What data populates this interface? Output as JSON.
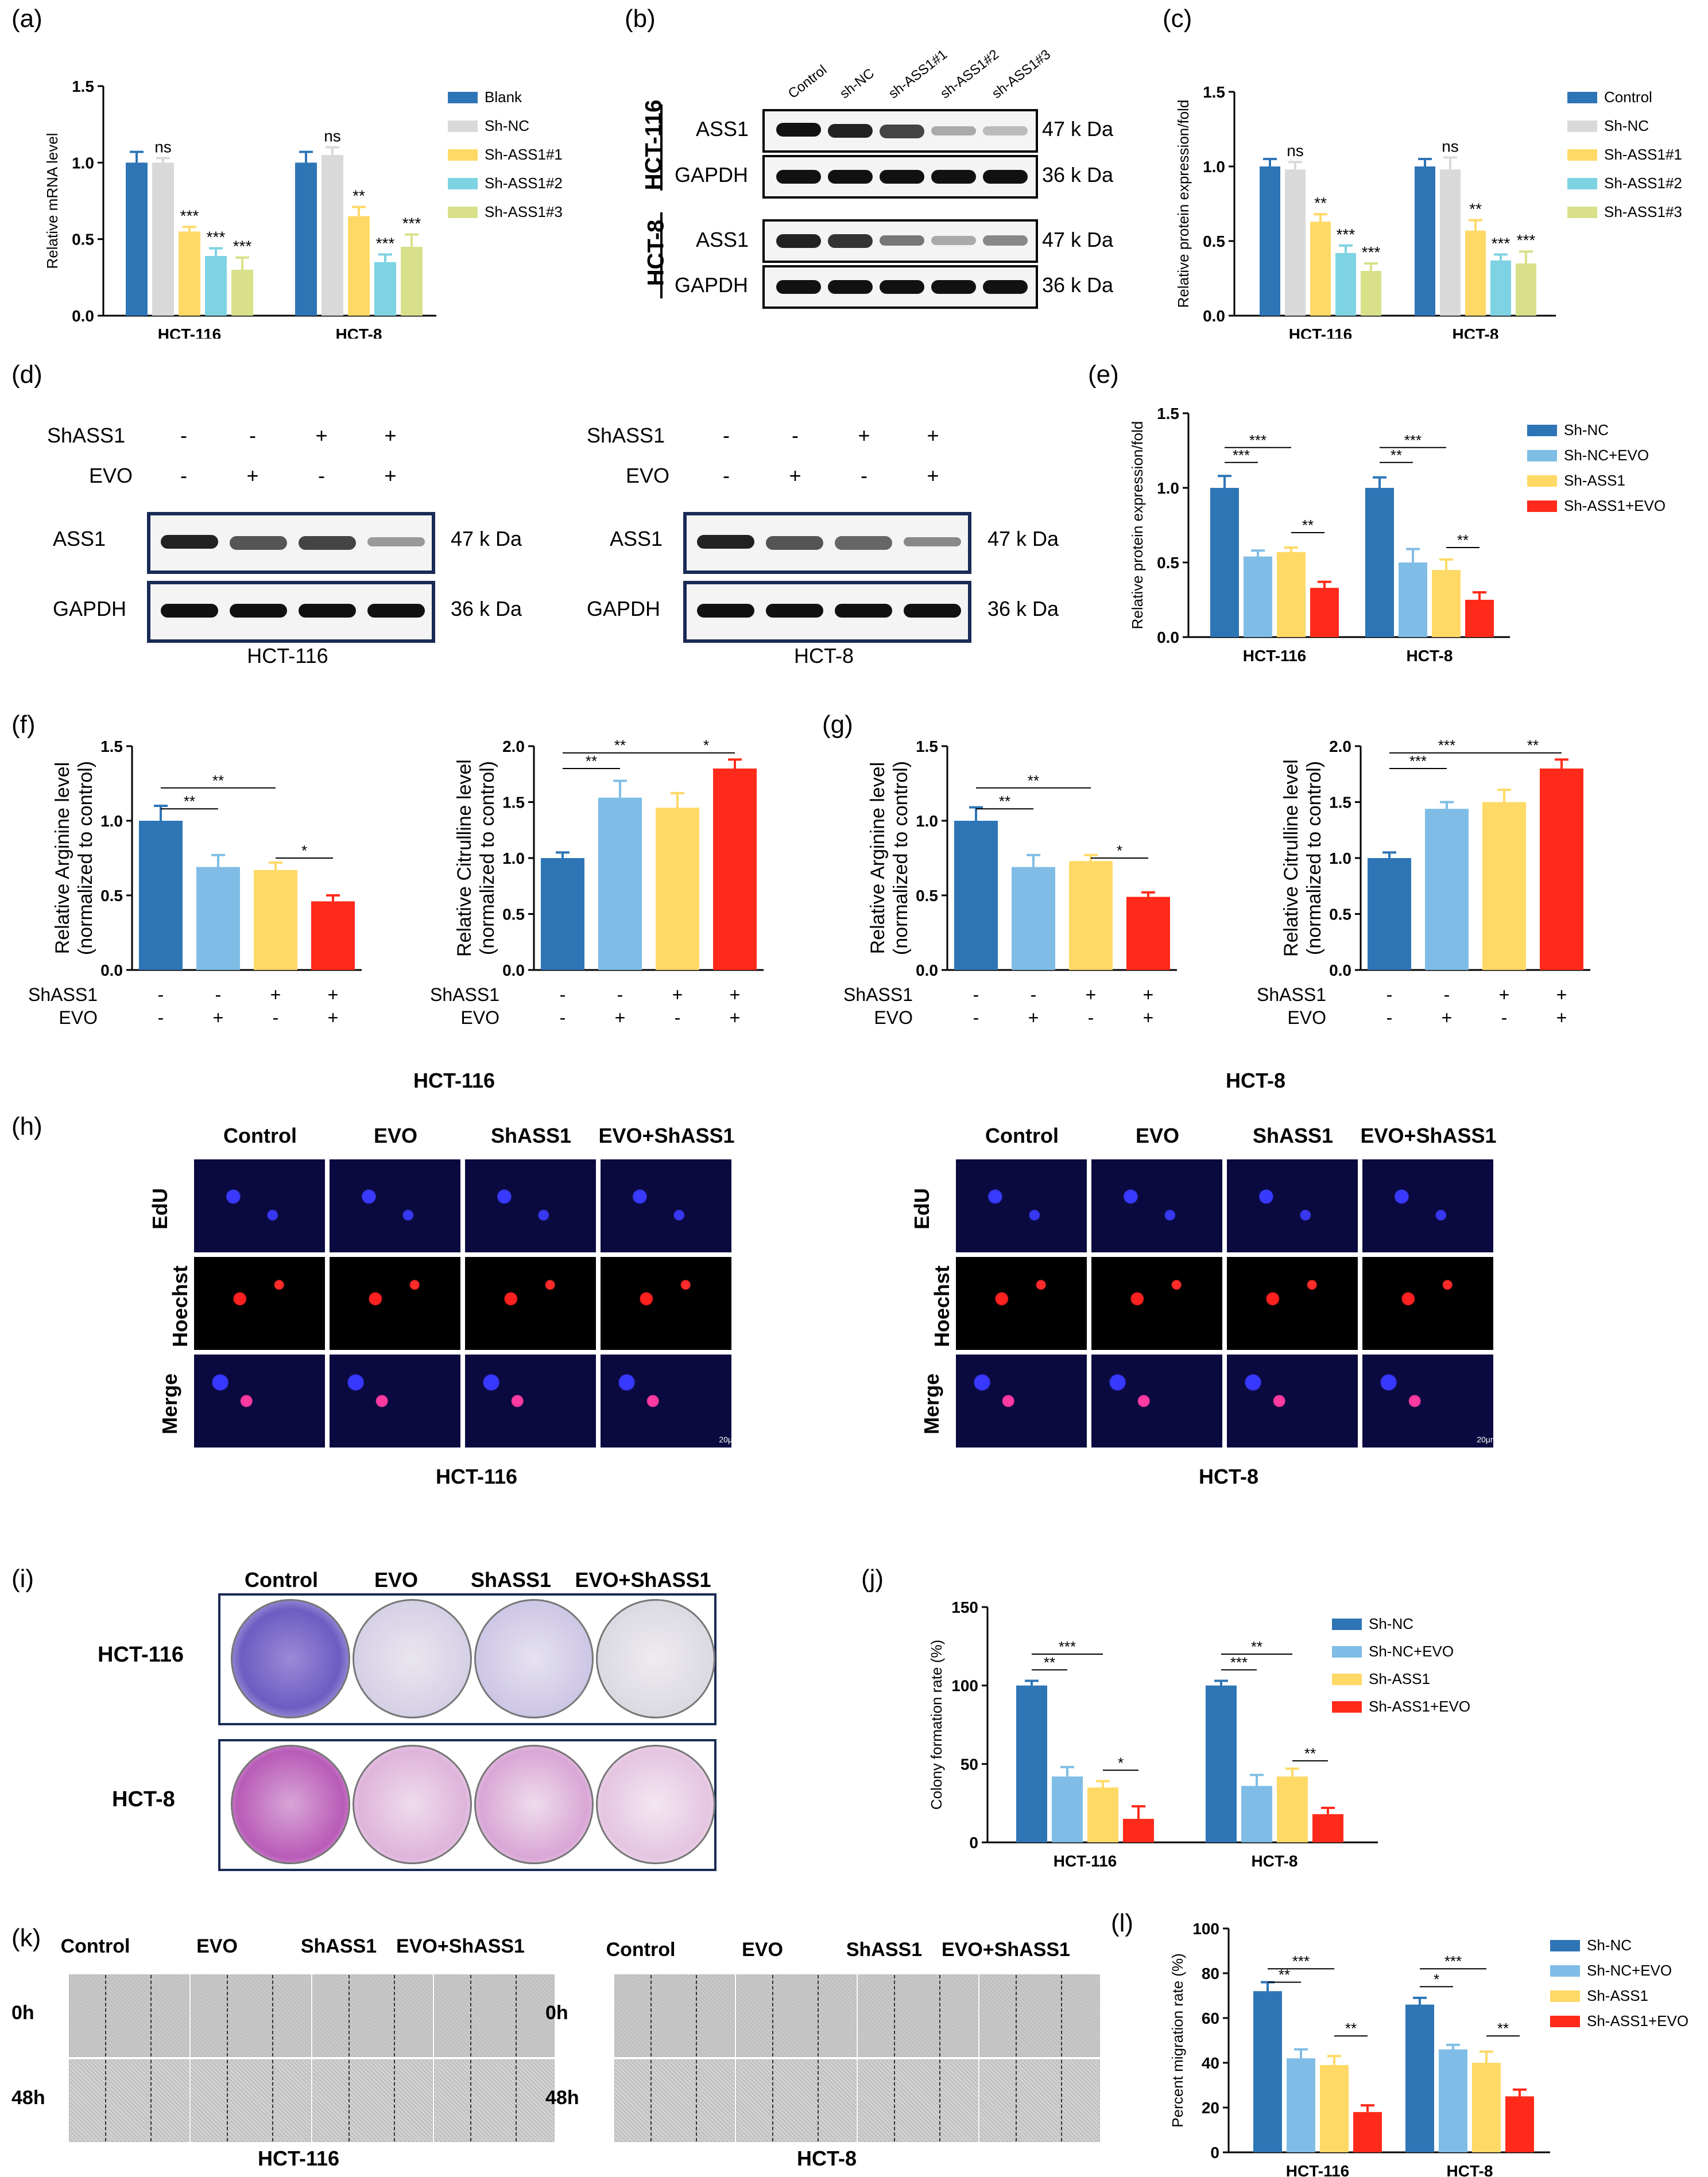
{
  "panels": {
    "a": "(a)",
    "b": "(b)",
    "c": "(c)",
    "d": "(d)",
    "e": "(e)",
    "f": "(f)",
    "g": "(g)",
    "h": "(h)",
    "i": "(i)",
    "j": "(j)",
    "k": "(k)",
    "l": "(l)"
  },
  "colors": {
    "blue": "#2e75b6",
    "lightgray": "#d9d9d9",
    "yellow": "#ffd966",
    "cyan": "#7ed3e3",
    "olive": "#d8e08a",
    "lightblue": "#7fbde6",
    "red": "#ff2a1a"
  },
  "blot_b": {
    "lanes": [
      "Control",
      "sh-NC",
      "sh-ASS1#1",
      "sh-ASS1#2",
      "sh-ASS1#3"
    ],
    "cells": [
      "HCT-116",
      "HCT-8"
    ],
    "proteins": [
      "ASS1",
      "GAPDH"
    ],
    "sizes": [
      "47 k Da",
      "36 k Da"
    ]
  },
  "blot_d": {
    "row1_label": "ShASS1",
    "row2_label": "EVO",
    "row1": [
      "-",
      "-",
      "+",
      "+"
    ],
    "row2": [
      "-",
      "+",
      "-",
      "+"
    ],
    "proteins": [
      "ASS1",
      "GAPDH"
    ],
    "sizes": [
      "47 k Da",
      "36 k Da"
    ],
    "cells": [
      "HCT-116",
      "HCT-8"
    ]
  },
  "conditions": {
    "row1_label": "ShASS1",
    "row2_label": "EVO",
    "row1": [
      "-",
      "-",
      "+",
      "+"
    ],
    "row2": [
      "-",
      "+",
      "-",
      "+"
    ]
  },
  "fg_titles": {
    "left": "HCT-116",
    "right": "HCT-8"
  },
  "edu": {
    "cols": [
      "Control",
      "EVO",
      "ShASS1",
      "EVO+ShASS1"
    ],
    "rows": [
      "EdU",
      "Hoechst",
      "Merge"
    ],
    "scale": "20μm",
    "cells": [
      "HCT-116",
      "HCT-8"
    ]
  },
  "colony": {
    "cols": [
      "Control",
      "EVO",
      "ShASS1",
      "EVO+ShASS1"
    ],
    "rows": [
      "HCT-116",
      "HCT-8"
    ]
  },
  "wound": {
    "cols": [
      "Control",
      "EVO",
      "ShASS1",
      "EVO+ShASS1"
    ],
    "rows": [
      "0h",
      "48h"
    ],
    "cells": [
      "HCT-116",
      "HCT-8"
    ]
  },
  "chart_data": [
    {
      "id": "a",
      "type": "bar",
      "ylabel": "Relative mRNA level",
      "ylim": [
        0,
        1.5
      ],
      "yticks": [
        "0.0",
        "0.5",
        "1.0",
        "1.5"
      ],
      "categories": [
        "HCT-116",
        "HCT-8"
      ],
      "series": [
        {
          "name": "Blank",
          "color": "#2e75b6",
          "values": [
            1.0,
            1.0
          ],
          "err": [
            0.07,
            0.07
          ],
          "sig": [
            "",
            ""
          ]
        },
        {
          "name": "Sh-NC",
          "color": "#d9d9d9",
          "values": [
            1.0,
            1.05
          ],
          "err": [
            0.03,
            0.05
          ],
          "sig": [
            "ns",
            "ns"
          ]
        },
        {
          "name": "Sh-ASS1#1",
          "color": "#ffd966",
          "values": [
            0.55,
            0.65
          ],
          "err": [
            0.03,
            0.06
          ],
          "sig": [
            "***",
            "**"
          ]
        },
        {
          "name": "Sh-ASS1#2",
          "color": "#7ed3e3",
          "values": [
            0.39,
            0.35
          ],
          "err": [
            0.05,
            0.05
          ],
          "sig": [
            "***",
            "***"
          ]
        },
        {
          "name": "Sh-ASS1#3",
          "color": "#d8e08a",
          "values": [
            0.3,
            0.45
          ],
          "err": [
            0.08,
            0.08
          ],
          "sig": [
            "***",
            "***"
          ]
        }
      ]
    },
    {
      "id": "c",
      "type": "bar",
      "ylabel": "Relative protein expression/fold",
      "ylim": [
        0,
        1.5
      ],
      "yticks": [
        "0.0",
        "0.5",
        "1.0",
        "1.5"
      ],
      "categories": [
        "HCT-116",
        "HCT-8"
      ],
      "series": [
        {
          "name": "Control",
          "color": "#2e75b6",
          "values": [
            1.0,
            1.0
          ],
          "err": [
            0.05,
            0.05
          ],
          "sig": [
            "",
            ""
          ]
        },
        {
          "name": "Sh-NC",
          "color": "#d9d9d9",
          "values": [
            0.98,
            0.98
          ],
          "err": [
            0.05,
            0.08
          ],
          "sig": [
            "ns",
            "ns"
          ]
        },
        {
          "name": "Sh-ASS1#1",
          "color": "#ffd966",
          "values": [
            0.63,
            0.57
          ],
          "err": [
            0.05,
            0.07
          ],
          "sig": [
            "**",
            "**"
          ]
        },
        {
          "name": "Sh-ASS1#2",
          "color": "#7ed3e3",
          "values": [
            0.42,
            0.37
          ],
          "err": [
            0.05,
            0.04
          ],
          "sig": [
            "***",
            "***"
          ]
        },
        {
          "name": "Sh-ASS1#3",
          "color": "#d8e08a",
          "values": [
            0.3,
            0.35
          ],
          "err": [
            0.05,
            0.08
          ],
          "sig": [
            "***",
            "***"
          ]
        }
      ]
    },
    {
      "id": "e",
      "type": "bar",
      "ylabel": "Relative protein expression/fold",
      "ylim": [
        0,
        1.5
      ],
      "yticks": [
        "0.0",
        "0.5",
        "1.0",
        "1.5"
      ],
      "categories": [
        "HCT-116",
        "HCT-8"
      ],
      "series": [
        {
          "name": "Sh-NC",
          "color": "#2e75b6",
          "values": [
            1.0,
            1.0
          ],
          "err": [
            0.08,
            0.07
          ]
        },
        {
          "name": "Sh-NC+EVO",
          "color": "#7fbde6",
          "values": [
            0.54,
            0.5
          ],
          "err": [
            0.04,
            0.09
          ]
        },
        {
          "name": "Sh-ASS1",
          "color": "#ffd966",
          "values": [
            0.57,
            0.45
          ],
          "err": [
            0.03,
            0.07
          ]
        },
        {
          "name": "Sh-ASS1+EVO",
          "color": "#ff2a1a",
          "values": [
            0.33,
            0.25
          ],
          "err": [
            0.04,
            0.05
          ]
        }
      ],
      "brackets": [
        {
          "cat": 0,
          "from": 0,
          "to": 2,
          "at": 1.27,
          "label": "***"
        },
        {
          "cat": 0,
          "from": 0,
          "to": 1,
          "at": 1.17,
          "label": "***"
        },
        {
          "cat": 0,
          "from": 2,
          "to": 3,
          "at": 0.7,
          "label": "**"
        },
        {
          "cat": 1,
          "from": 0,
          "to": 2,
          "at": 1.27,
          "label": "***"
        },
        {
          "cat": 1,
          "from": 0,
          "to": 1,
          "at": 1.17,
          "label": "**"
        },
        {
          "cat": 1,
          "from": 2,
          "to": 3,
          "at": 0.6,
          "label": "**"
        }
      ]
    },
    {
      "id": "f1",
      "type": "bar",
      "ylabel": "Relative Arginine level",
      "ylabel2": "(normalized to control)",
      "ylim": [
        0,
        1.5
      ],
      "yticks": [
        "0.0",
        "0.5",
        "1.0",
        "1.5"
      ],
      "values": [
        1.0,
        0.69,
        0.67,
        0.46
      ],
      "err": [
        0.1,
        0.08,
        0.05,
        0.04
      ],
      "colors": [
        "#2e75b6",
        "#7fbde6",
        "#ffd966",
        "#ff2a1a"
      ],
      "brackets": [
        {
          "from": 0,
          "to": 2,
          "at": 1.22,
          "label": "**"
        },
        {
          "from": 0,
          "to": 1,
          "at": 1.08,
          "label": "**"
        },
        {
          "from": 2,
          "to": 3,
          "at": 0.75,
          "label": "*"
        }
      ]
    },
    {
      "id": "f2",
      "type": "bar",
      "ylabel": "Relative Citrulline level",
      "ylabel2": "(normalized to control)",
      "ylim": [
        0,
        2.0
      ],
      "yticks": [
        "0.0",
        "0.5",
        "1.0",
        "1.5",
        "2.0"
      ],
      "values": [
        1.0,
        1.54,
        1.45,
        1.8
      ],
      "err": [
        0.05,
        0.15,
        0.13,
        0.08
      ],
      "colors": [
        "#2e75b6",
        "#7fbde6",
        "#ffd966",
        "#ff2a1a"
      ],
      "brackets": [
        {
          "from": 0,
          "to": 2,
          "at": 1.94,
          "label": "**"
        },
        {
          "from": 0,
          "to": 1,
          "at": 1.8,
          "label": "**"
        },
        {
          "from": 2,
          "to": 3,
          "at": 1.94,
          "label": "*"
        }
      ]
    },
    {
      "id": "g1",
      "type": "bar",
      "ylabel": "Relative Arginine level",
      "ylabel2": "(normalized to control)",
      "ylim": [
        0,
        1.5
      ],
      "yticks": [
        "0.0",
        "0.5",
        "1.0",
        "1.5"
      ],
      "values": [
        1.0,
        0.69,
        0.73,
        0.49
      ],
      "err": [
        0.09,
        0.08,
        0.04,
        0.03
      ],
      "colors": [
        "#2e75b6",
        "#7fbde6",
        "#ffd966",
        "#ff2a1a"
      ],
      "brackets": [
        {
          "from": 0,
          "to": 2,
          "at": 1.22,
          "label": "**"
        },
        {
          "from": 0,
          "to": 1,
          "at": 1.08,
          "label": "**"
        },
        {
          "from": 2,
          "to": 3,
          "at": 0.75,
          "label": "*"
        }
      ]
    },
    {
      "id": "g2",
      "type": "bar",
      "ylabel": "Relative Citrulline level",
      "ylabel2": "(normalized to control)",
      "ylim": [
        0,
        2.0
      ],
      "yticks": [
        "0.0",
        "0.5",
        "1.0",
        "1.5",
        "2.0"
      ],
      "values": [
        1.0,
        1.44,
        1.5,
        1.8
      ],
      "err": [
        0.05,
        0.06,
        0.11,
        0.08
      ],
      "colors": [
        "#2e75b6",
        "#7fbde6",
        "#ffd966",
        "#ff2a1a"
      ],
      "brackets": [
        {
          "from": 0,
          "to": 2,
          "at": 1.94,
          "label": "***"
        },
        {
          "from": 0,
          "to": 1,
          "at": 1.8,
          "label": "***"
        },
        {
          "from": 2,
          "to": 3,
          "at": 1.94,
          "label": "**"
        }
      ]
    },
    {
      "id": "j",
      "type": "bar",
      "ylabel": "Colony formation rate  (%)",
      "ylim": [
        0,
        150
      ],
      "yticks": [
        "0",
        "50",
        "100",
        "150"
      ],
      "categories": [
        "HCT-116",
        "HCT-8"
      ],
      "series": [
        {
          "name": "Sh-NC",
          "color": "#2e75b6",
          "values": [
            100,
            100
          ],
          "err": [
            3,
            3
          ]
        },
        {
          "name": "Sh-NC+EVO",
          "color": "#7fbde6",
          "values": [
            42,
            36
          ],
          "err": [
            6,
            7
          ]
        },
        {
          "name": "Sh-ASS1",
          "color": "#ffd966",
          "values": [
            35,
            42
          ],
          "err": [
            4,
            5
          ]
        },
        {
          "name": "Sh-ASS1+EVO",
          "color": "#ff2a1a",
          "values": [
            15,
            18
          ],
          "err": [
            8,
            4
          ]
        }
      ],
      "brackets": [
        {
          "cat": 0,
          "from": 0,
          "to": 2,
          "at": 120,
          "label": "***"
        },
        {
          "cat": 0,
          "from": 0,
          "to": 1,
          "at": 110,
          "label": "**"
        },
        {
          "cat": 0,
          "from": 2,
          "to": 3,
          "at": 46,
          "label": "*"
        },
        {
          "cat": 1,
          "from": 0,
          "to": 2,
          "at": 120,
          "label": "**"
        },
        {
          "cat": 1,
          "from": 0,
          "to": 1,
          "at": 110,
          "label": "***"
        },
        {
          "cat": 1,
          "from": 2,
          "to": 3,
          "at": 52,
          "label": "**"
        }
      ]
    },
    {
      "id": "l",
      "type": "bar",
      "ylabel": "Percent migration rate  (%)",
      "ylim": [
        0,
        100
      ],
      "yticks": [
        "0",
        "20",
        "40",
        "60",
        "80",
        "100"
      ],
      "categories": [
        "HCT-116",
        "HCT-8"
      ],
      "series": [
        {
          "name": "Sh-NC",
          "color": "#2e75b6",
          "values": [
            72,
            66
          ],
          "err": [
            4,
            3
          ]
        },
        {
          "name": "Sh-NC+EVO",
          "color": "#7fbde6",
          "values": [
            42,
            46
          ],
          "err": [
            4,
            2
          ]
        },
        {
          "name": "Sh-ASS1",
          "color": "#ffd966",
          "values": [
            39,
            40
          ],
          "err": [
            4,
            5
          ]
        },
        {
          "name": "Sh-ASS1+EVO",
          "color": "#ff2a1a",
          "values": [
            18,
            25
          ],
          "err": [
            3,
            3
          ]
        }
      ],
      "brackets": [
        {
          "cat": 0,
          "from": 0,
          "to": 2,
          "at": 82,
          "label": "***"
        },
        {
          "cat": 0,
          "from": 0,
          "to": 1,
          "at": 76,
          "label": "**"
        },
        {
          "cat": 0,
          "from": 2,
          "to": 3,
          "at": 52,
          "label": "**"
        },
        {
          "cat": 1,
          "from": 0,
          "to": 2,
          "at": 82,
          "label": "***"
        },
        {
          "cat": 1,
          "from": 0,
          "to": 1,
          "at": 74,
          "label": "*"
        },
        {
          "cat": 1,
          "from": 2,
          "to": 3,
          "at": 52,
          "label": "**"
        }
      ]
    }
  ]
}
